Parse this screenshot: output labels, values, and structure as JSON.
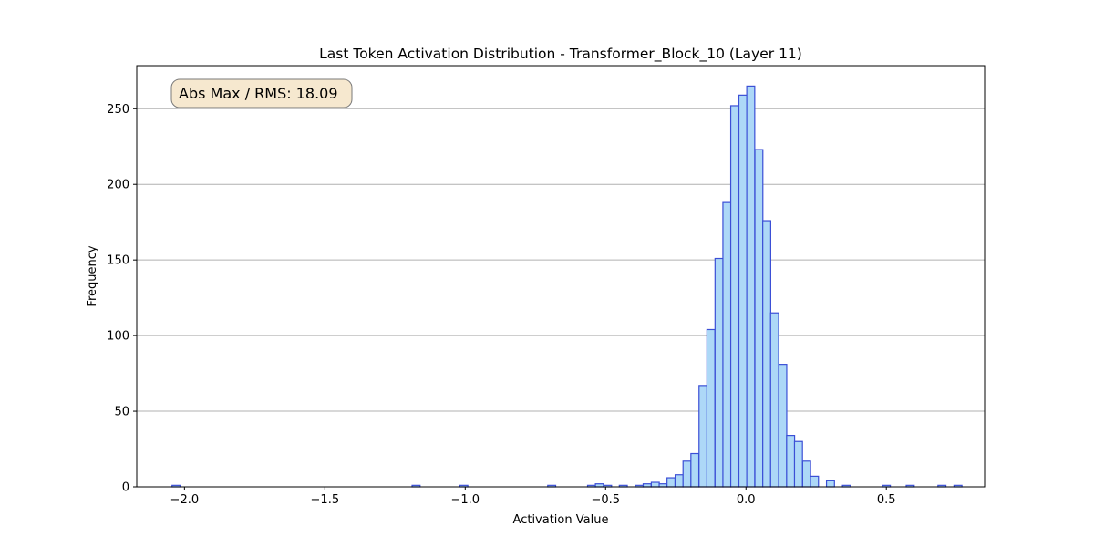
{
  "chart_data": {
    "type": "bar",
    "title": "Last Token Activation Distribution - Transformer_Block_10 (Layer 11)",
    "xlabel": "Activation Value",
    "ylabel": "Frequency",
    "annotation": "Abs Max / RMS: 18.09",
    "xlim": [
      -2.17,
      0.85
    ],
    "ylim": [
      0,
      278.5
    ],
    "xticks": [
      -2.0,
      -1.5,
      -1.0,
      -0.5,
      0.0,
      0.5
    ],
    "xtick_labels": [
      "−2.0",
      "−1.5",
      "−1.0",
      "−0.5",
      "0.0",
      "0.5"
    ],
    "yticks": [
      0,
      50,
      100,
      150,
      200,
      250
    ],
    "ytick_labels": [
      "0",
      "50",
      "100",
      "150",
      "200",
      "250"
    ],
    "grid": "y",
    "colors": {
      "bar_fill": "#add8f7",
      "bar_edge": "#3b4fd6",
      "annotation_bg": "#f6e8cf",
      "grid": "#b0b0b0"
    },
    "bin_width": 0.02837,
    "bins": [
      {
        "x": -2.03,
        "count": 1
      },
      {
        "x": -1.175,
        "count": 1
      },
      {
        "x": -1.005,
        "count": 1
      },
      {
        "x": -0.692,
        "count": 1
      },
      {
        "x": -0.55,
        "count": 1
      },
      {
        "x": -0.522,
        "count": 2
      },
      {
        "x": -0.493,
        "count": 1
      },
      {
        "x": -0.437,
        "count": 1
      },
      {
        "x": -0.38,
        "count": 1
      },
      {
        "x": -0.352,
        "count": 2
      },
      {
        "x": -0.323,
        "count": 3
      },
      {
        "x": -0.295,
        "count": 2
      },
      {
        "x": -0.267,
        "count": 6
      },
      {
        "x": -0.238,
        "count": 8
      },
      {
        "x": -0.21,
        "count": 17
      },
      {
        "x": -0.182,
        "count": 22
      },
      {
        "x": -0.153,
        "count": 67
      },
      {
        "x": -0.125,
        "count": 104
      },
      {
        "x": -0.096,
        "count": 151
      },
      {
        "x": -0.068,
        "count": 188
      },
      {
        "x": -0.04,
        "count": 252
      },
      {
        "x": -0.011,
        "count": 259
      },
      {
        "x": 0.017,
        "count": 265
      },
      {
        "x": 0.046,
        "count": 223
      },
      {
        "x": 0.074,
        "count": 176
      },
      {
        "x": 0.102,
        "count": 115
      },
      {
        "x": 0.131,
        "count": 81
      },
      {
        "x": 0.159,
        "count": 34
      },
      {
        "x": 0.187,
        "count": 30
      },
      {
        "x": 0.216,
        "count": 17
      },
      {
        "x": 0.244,
        "count": 7
      },
      {
        "x": 0.301,
        "count": 4
      },
      {
        "x": 0.358,
        "count": 1
      },
      {
        "x": 0.5,
        "count": 1
      },
      {
        "x": 0.585,
        "count": 1
      },
      {
        "x": 0.698,
        "count": 1
      },
      {
        "x": 0.755,
        "count": 1
      }
    ]
  }
}
